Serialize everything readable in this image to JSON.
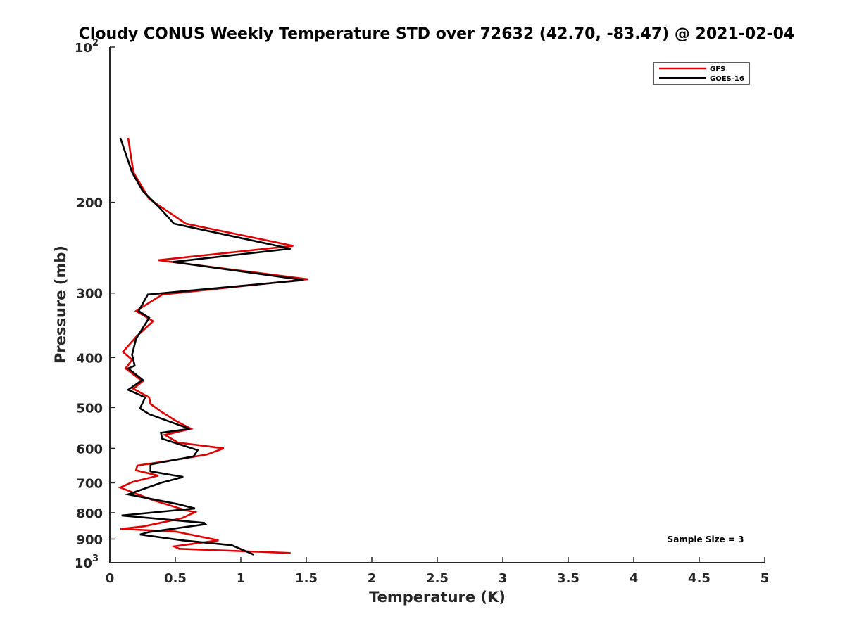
{
  "chart_data": {
    "type": "line",
    "title": "Cloudy CONUS Weekly Temperature STD over 72632 (42.70, -83.47) @ 2021-02-04",
    "xlabel": "Temperature (K)",
    "ylabel": "Pressure (mb)",
    "xlim": [
      0,
      5
    ],
    "ylim": [
      1000,
      100
    ],
    "y_scale": "log",
    "y_reversed": true,
    "x_ticks": [
      "0",
      "0.5",
      "1",
      "1.5",
      "2",
      "2.5",
      "3",
      "3.5",
      "4",
      "4.5",
      "5"
    ],
    "x_tick_values": [
      0,
      0.5,
      1,
      1.5,
      2,
      2.5,
      3,
      3.5,
      4,
      4.5,
      5
    ],
    "y_ticks": [
      {
        "value": 100,
        "base": "10",
        "exp": "2"
      },
      {
        "value": 200,
        "label": "200"
      },
      {
        "value": 300,
        "label": "300"
      },
      {
        "value": 400,
        "label": "400"
      },
      {
        "value": 500,
        "label": "500"
      },
      {
        "value": 600,
        "label": "600"
      },
      {
        "value": 700,
        "label": "700"
      },
      {
        "value": 800,
        "label": "800"
      },
      {
        "value": 900,
        "label": "900"
      },
      {
        "value": 1000,
        "base": "10",
        "exp": "3"
      }
    ],
    "grid": false,
    "legend_position": "top-right",
    "annotation": "Sample Size = 3",
    "series": [
      {
        "name": "GFS",
        "color": "#e00000",
        "points": [
          [
            0.14,
            150
          ],
          [
            0.18,
            175
          ],
          [
            0.3,
            197
          ],
          [
            0.58,
            220
          ],
          [
            1.4,
            243
          ],
          [
            0.37,
            259
          ],
          [
            1.51,
            282
          ],
          [
            0.4,
            302
          ],
          [
            0.2,
            325
          ],
          [
            0.33,
            340
          ],
          [
            0.2,
            365
          ],
          [
            0.1,
            390
          ],
          [
            0.17,
            404
          ],
          [
            0.12,
            420
          ],
          [
            0.25,
            445
          ],
          [
            0.18,
            460
          ],
          [
            0.3,
            478
          ],
          [
            0.31,
            492
          ],
          [
            0.38,
            507
          ],
          [
            0.5,
            530
          ],
          [
            0.62,
            550
          ],
          [
            0.42,
            565
          ],
          [
            0.52,
            585
          ],
          [
            0.87,
            600
          ],
          [
            0.74,
            617
          ],
          [
            0.53,
            630
          ],
          [
            0.21,
            648
          ],
          [
            0.2,
            662
          ],
          [
            0.37,
            678
          ],
          [
            0.17,
            698
          ],
          [
            0.08,
            715
          ],
          [
            0.32,
            755
          ],
          [
            0.57,
            790
          ],
          [
            0.65,
            798
          ],
          [
            0.55,
            820
          ],
          [
            0.26,
            850
          ],
          [
            0.08,
            860
          ],
          [
            0.5,
            870
          ],
          [
            0.83,
            905
          ],
          [
            0.49,
            930
          ],
          [
            0.53,
            940
          ],
          [
            1.38,
            958
          ]
        ]
      },
      {
        "name": "GOES-16",
        "color": "#000000",
        "points": [
          [
            0.08,
            150
          ],
          [
            0.17,
            175
          ],
          [
            0.25,
            190
          ],
          [
            0.38,
            205
          ],
          [
            0.49,
            220
          ],
          [
            1.38,
            246
          ],
          [
            0.48,
            261
          ],
          [
            1.48,
            283
          ],
          [
            0.29,
            302
          ],
          [
            0.22,
            325
          ],
          [
            0.3,
            335
          ],
          [
            0.2,
            368
          ],
          [
            0.17,
            395
          ],
          [
            0.19,
            415
          ],
          [
            0.14,
            420
          ],
          [
            0.25,
            442
          ],
          [
            0.14,
            462
          ],
          [
            0.27,
            478
          ],
          [
            0.23,
            502
          ],
          [
            0.3,
            515
          ],
          [
            0.61,
            550
          ],
          [
            0.39,
            560
          ],
          [
            0.4,
            575
          ],
          [
            0.67,
            605
          ],
          [
            0.64,
            622
          ],
          [
            0.31,
            645
          ],
          [
            0.31,
            665
          ],
          [
            0.56,
            682
          ],
          [
            0.39,
            700
          ],
          [
            0.14,
            737
          ],
          [
            0.52,
            770
          ],
          [
            0.65,
            785
          ],
          [
            0.09,
            810
          ],
          [
            0.72,
            837
          ],
          [
            0.73,
            842
          ],
          [
            0.3,
            872
          ],
          [
            0.23,
            882
          ],
          [
            0.55,
            905
          ],
          [
            0.93,
            925
          ],
          [
            1.1,
            965
          ]
        ]
      }
    ]
  }
}
